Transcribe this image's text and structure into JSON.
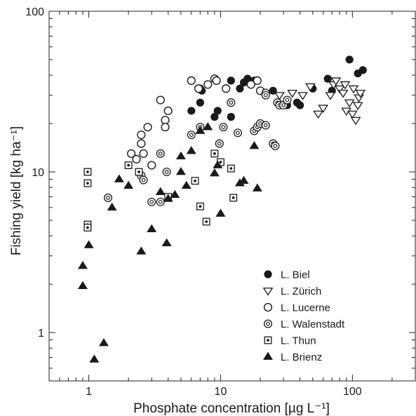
{
  "chart_data": {
    "type": "scatter",
    "xlabel": "Phosphate concentration [µg L⁻¹]",
    "ylabel": "Fishing yield [kg ha⁻¹]",
    "xscale": "log",
    "yscale": "log",
    "xlim": [
      0.5,
      300
    ],
    "ylim": [
      0.5,
      100
    ],
    "x_ticks": [
      1,
      10,
      100
    ],
    "y_ticks": [
      1,
      10,
      100
    ],
    "x_tick_labels": [
      "1",
      "10",
      "100"
    ],
    "y_tick_labels": [
      "1",
      "10",
      "100"
    ],
    "grid": false,
    "legend_position": "bottom-right",
    "series": [
      {
        "name": "L. Biel",
        "marker": "filled-circle",
        "points": [
          [
            6,
            24
          ],
          [
            7,
            27
          ],
          [
            7,
            33
          ],
          [
            7.2,
            32
          ],
          [
            9,
            22
          ],
          [
            9.5,
            24
          ],
          [
            11,
            33
          ],
          [
            12,
            22
          ],
          [
            12,
            37
          ],
          [
            14,
            33
          ],
          [
            15,
            36
          ],
          [
            16,
            38
          ],
          [
            18,
            37
          ],
          [
            25,
            32
          ],
          [
            32,
            26
          ],
          [
            38,
            27
          ],
          [
            40,
            26
          ],
          [
            50,
            33
          ],
          [
            65,
            38
          ],
          [
            70,
            32
          ],
          [
            95,
            50
          ],
          [
            110,
            41
          ],
          [
            120,
            43
          ]
        ]
      },
      {
        "name": "L. Zürich",
        "marker": "open-triangle-down",
        "points": [
          [
            28,
            30
          ],
          [
            35,
            31
          ],
          [
            42,
            30
          ],
          [
            48,
            34
          ],
          [
            55,
            23
          ],
          [
            60,
            25
          ],
          [
            68,
            30
          ],
          [
            72,
            35
          ],
          [
            75,
            37
          ],
          [
            80,
            33
          ],
          [
            85,
            31
          ],
          [
            88,
            35
          ],
          [
            90,
            24
          ],
          [
            95,
            27
          ],
          [
            100,
            23
          ],
          [
            102,
            33
          ],
          [
            106,
            21
          ],
          [
            110,
            26
          ],
          [
            112,
            29
          ],
          [
            115,
            31
          ]
        ]
      },
      {
        "name": "L. Lucerne",
        "marker": "open-circle",
        "points": [
          [
            2.1,
            13
          ],
          [
            2.3,
            12
          ],
          [
            2.5,
            17
          ],
          [
            2.5,
            15
          ],
          [
            2.6,
            13
          ],
          [
            2.8,
            19
          ],
          [
            3,
            11
          ],
          [
            3.5,
            28
          ],
          [
            3.8,
            21
          ],
          [
            3.8,
            19
          ],
          [
            4,
            24
          ],
          [
            6,
            37
          ],
          [
            6.8,
            33
          ],
          [
            8,
            35
          ],
          [
            9,
            38
          ],
          [
            9.3,
            37
          ],
          [
            11,
            33
          ],
          [
            17,
            35
          ],
          [
            19,
            37
          ],
          [
            20,
            32
          ],
          [
            22,
            31
          ]
        ]
      },
      {
        "name": "L. Walenstadt",
        "marker": "double-circle",
        "points": [
          [
            1.4,
            6.9
          ],
          [
            2.5,
            9.5
          ],
          [
            2.6,
            8.9
          ],
          [
            3,
            6.5
          ],
          [
            3.5,
            6.5
          ],
          [
            3.5,
            13
          ],
          [
            3.9,
            10
          ],
          [
            6,
            17
          ],
          [
            7,
            19
          ],
          [
            9.8,
            15
          ],
          [
            10.5,
            19
          ],
          [
            12,
            27
          ],
          [
            13.5,
            17.5
          ],
          [
            18,
            18
          ],
          [
            19,
            19
          ],
          [
            20,
            20
          ],
          [
            22,
            30
          ],
          [
            22,
            19.5
          ],
          [
            25,
            15
          ],
          [
            26,
            14.5
          ],
          [
            27,
            27
          ],
          [
            28,
            26
          ],
          [
            30,
            26
          ],
          [
            32,
            28
          ]
        ]
      },
      {
        "name": "L. Thun",
        "marker": "dotted-square",
        "points": [
          [
            0.98,
            10
          ],
          [
            0.98,
            8.5
          ],
          [
            0.98,
            4.7
          ],
          [
            0.98,
            4.5
          ],
          [
            2,
            11
          ],
          [
            2.4,
            10
          ],
          [
            4,
            7
          ],
          [
            6.4,
            8.8
          ],
          [
            7,
            6.1
          ],
          [
            7.8,
            4.9
          ],
          [
            9,
            13
          ],
          [
            10,
            11.5
          ],
          [
            12,
            10.5
          ],
          [
            12.5,
            6.9
          ]
        ]
      },
      {
        "name": "L. Brienz",
        "marker": "filled-triangle-up",
        "points": [
          [
            0.9,
            2.6
          ],
          [
            0.9,
            1.95
          ],
          [
            1,
            3.5
          ],
          [
            1.1,
            0.68
          ],
          [
            1.3,
            0.86
          ],
          [
            1.5,
            6
          ],
          [
            1.7,
            9
          ],
          [
            2,
            8.2
          ],
          [
            2.5,
            3.2
          ],
          [
            3,
            4.4
          ],
          [
            3.5,
            7.5
          ],
          [
            3.9,
            3.6
          ],
          [
            4,
            6.8
          ],
          [
            4.5,
            7.2
          ],
          [
            5,
            12.5
          ],
          [
            5,
            10
          ],
          [
            5.5,
            8.2
          ],
          [
            6,
            13.5
          ],
          [
            7,
            18
          ],
          [
            8,
            19
          ],
          [
            9,
            9.8
          ],
          [
            9.5,
            11
          ],
          [
            10,
            5.5
          ],
          [
            14,
            8.5
          ],
          [
            15,
            8.8
          ],
          [
            18,
            14.5
          ],
          [
            19,
            7.9
          ]
        ]
      }
    ]
  }
}
